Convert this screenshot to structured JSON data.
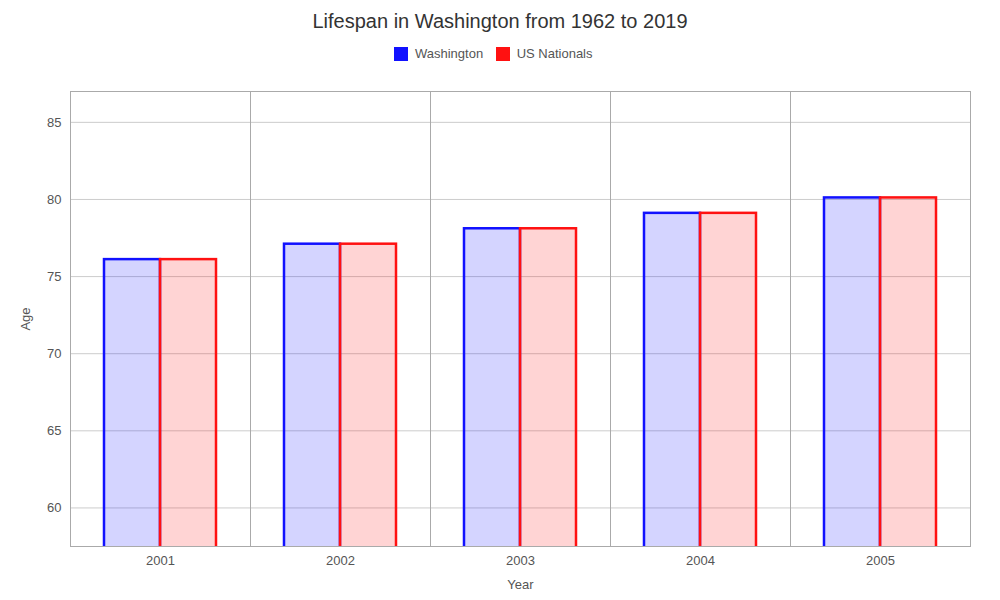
{
  "chart_data": {
    "type": "bar",
    "title": "Lifespan in Washington from 1962 to 2019",
    "xlabel": "Year",
    "ylabel": "Age",
    "categories": [
      "2001",
      "2002",
      "2003",
      "2004",
      "2005"
    ],
    "series": [
      {
        "name": "Washington",
        "color": "#1111ff",
        "values": [
          76.1,
          77.1,
          78.1,
          79.1,
          80.1
        ]
      },
      {
        "name": "US Nationals",
        "color": "#ff1111",
        "values": [
          76.1,
          77.1,
          78.1,
          79.1,
          80.1
        ]
      }
    ],
    "ylim": [
      57.5,
      87
    ],
    "yticks": [
      60,
      65,
      70,
      75,
      80,
      85
    ],
    "grid": true,
    "legend": "top"
  }
}
